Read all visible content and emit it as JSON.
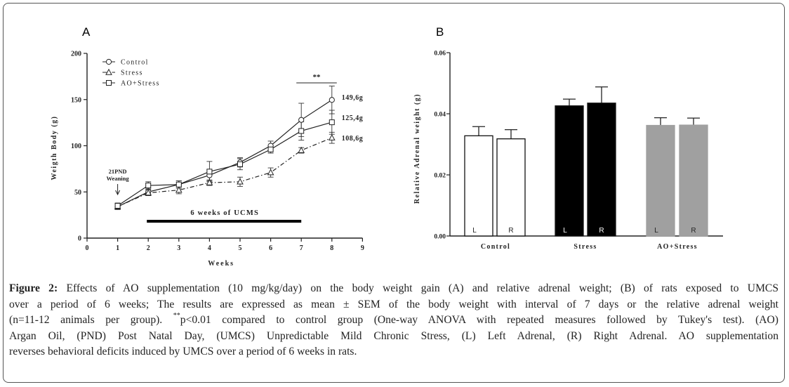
{
  "chart_data": [
    {
      "panel": "A",
      "type": "line",
      "ylabel": "Weigth Body (g)",
      "xlabel": "Weeks",
      "xlim": [
        0,
        9
      ],
      "ylim": [
        0,
        200
      ],
      "xticks": [
        "0",
        "1",
        "2",
        "3",
        "4",
        "5",
        "6",
        "7",
        "8",
        "9"
      ],
      "yticks": [
        "0",
        "50",
        "100",
        "150",
        "200"
      ],
      "x": [
        1,
        2,
        3,
        4,
        5,
        6,
        7,
        8
      ],
      "series": [
        {
          "name": "Control",
          "marker": "circle",
          "line": "solid",
          "values": [
            34,
            50,
            58,
            68,
            82,
            100,
            128,
            149.6
          ],
          "err": [
            3,
            4,
            4,
            6,
            5,
            5,
            18,
            15
          ],
          "end_label": "149,6g"
        },
        {
          "name": "Stress",
          "marker": "triangle",
          "line": "dashdot",
          "values": [
            34,
            49,
            52,
            60,
            61,
            71,
            95,
            108.6
          ],
          "err": [
            3,
            3,
            4,
            3,
            5,
            5,
            3,
            6
          ],
          "end_label": "108,6g"
        },
        {
          "name": "AO+Stress",
          "marker": "square",
          "line": "solid",
          "values": [
            35,
            57,
            58,
            72,
            80,
            96,
            116,
            125.4
          ],
          "err": [
            3,
            4,
            4,
            11,
            6,
            4,
            10,
            13
          ],
          "end_label": "125,4g"
        }
      ],
      "legend": [
        "Control",
        "Stress",
        "AO+Stress"
      ],
      "annotations": {
        "significance": "**",
        "weaning": "21PND",
        "weaning2": "Weaning",
        "ucms": "6 weeks of UCMS"
      }
    },
    {
      "panel": "B",
      "type": "bar",
      "ylabel": "Relative Adrenal weight (g)",
      "ylim": [
        0,
        0.06
      ],
      "yticks": [
        "0.00",
        "0.02",
        "0.04",
        "0.06"
      ],
      "categories": [
        "Control",
        "Stress",
        "AO+Stress"
      ],
      "bars": [
        {
          "group": "Control",
          "side": "L",
          "value": 0.0328,
          "err": 0.003,
          "color": "#ffffff"
        },
        {
          "group": "Control",
          "side": "R",
          "value": 0.0318,
          "err": 0.003,
          "color": "#ffffff"
        },
        {
          "group": "Stress",
          "side": "L",
          "value": 0.0426,
          "err": 0.0022,
          "color": "#000000"
        },
        {
          "group": "Stress",
          "side": "R",
          "value": 0.0435,
          "err": 0.0053,
          "color": "#000000"
        },
        {
          "group": "AO+Stress",
          "side": "L",
          "value": 0.0362,
          "err": 0.0025,
          "color": "#a0a0a0"
        },
        {
          "group": "AO+Stress",
          "side": "R",
          "value": 0.0363,
          "err": 0.0023,
          "color": "#a0a0a0"
        }
      ]
    }
  ],
  "caption": {
    "lines": [
      {
        "label": "Figure 2:",
        "text": " Effects of AO supplementation (10 mg/kg/day) on the body weight gain (A) and relative adrenal weight; (B) of rats exposed to UMCS"
      },
      {
        "text": "over a period of 6 weeks; The results are expressed as mean ± SEM of the body weight with interval of 7 days or the relative adrenal weight"
      },
      {
        "pre": "(n=11-12 animals per group). ",
        "sup": "**",
        "text": "p<0.01 compared to control group (One-way ANOVA with repeated measures followed by Tukey's test). (AO)"
      },
      {
        "text": "Argan Oil, (PND) Post Natal Day, (UMCS) Unpredictable Mild Chronic Stress, (L) Left Adrenal, (R) Right Adrenal. AO supplementation"
      },
      {
        "text": "reverses behavioral deficits induced by UMCS over a period of 6 weeks in rats."
      }
    ]
  }
}
